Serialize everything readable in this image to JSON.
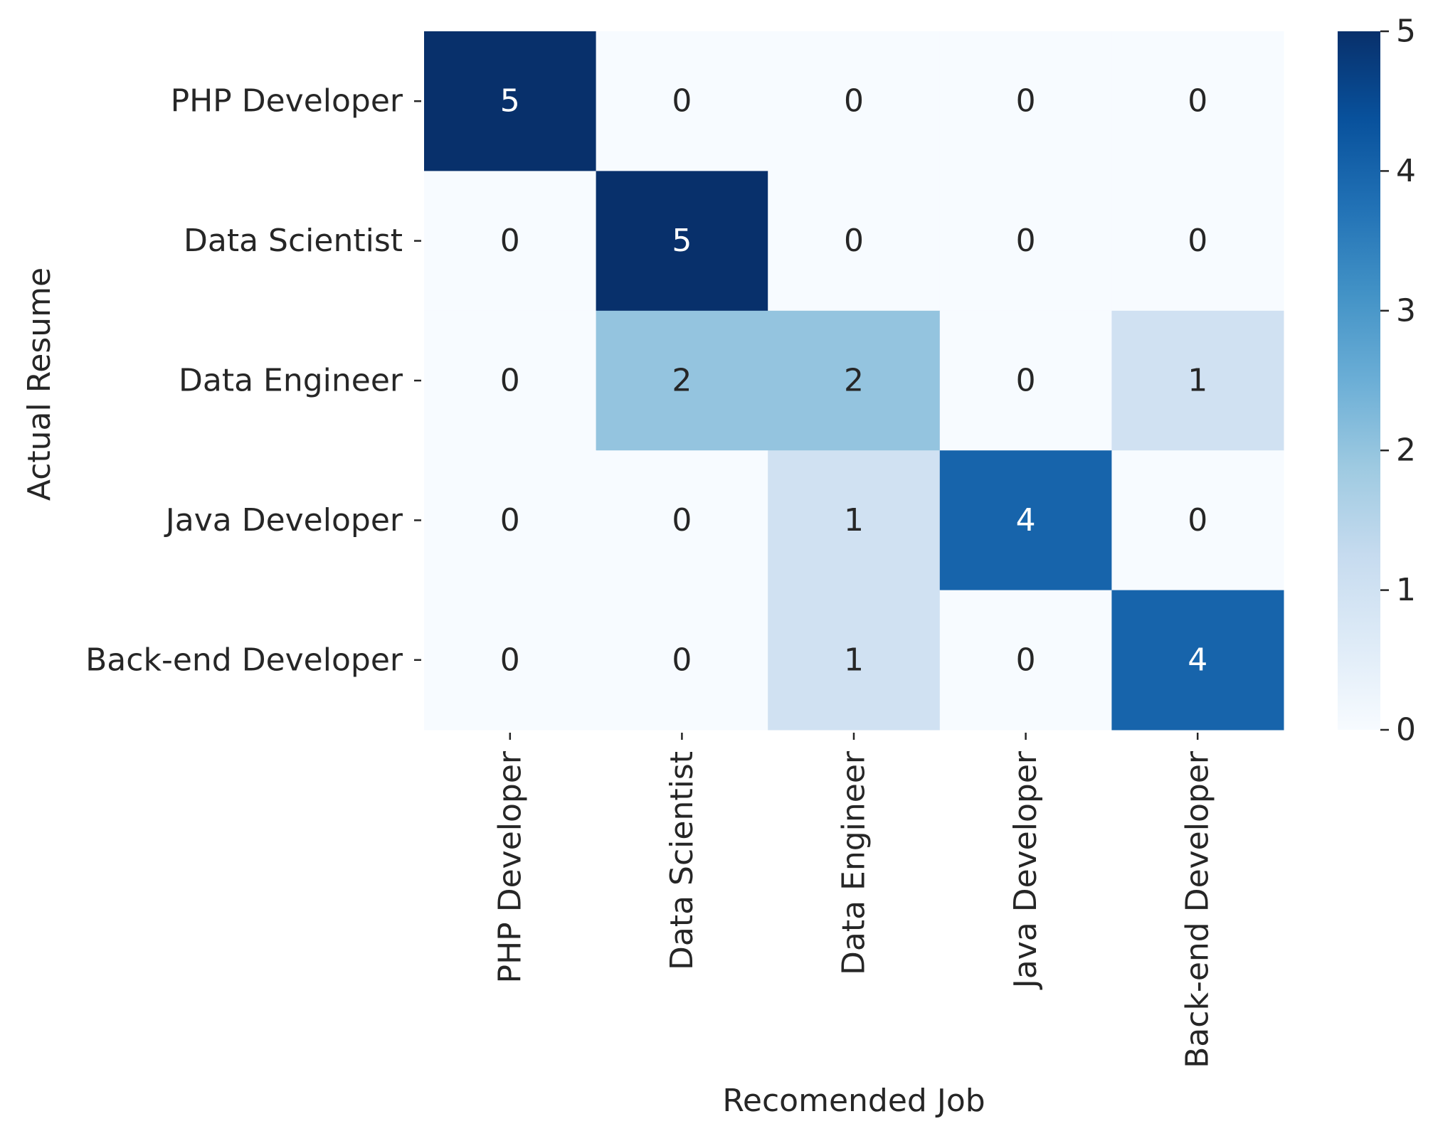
{
  "chart_data": {
    "type": "heatmap",
    "title": "",
    "xlabel": "Recomended Job",
    "ylabel": "Actual Resume",
    "x_categories": [
      "PHP Developer",
      "Data Scientist",
      "Data Engineer",
      "Java Developer",
      "Back-end Developer"
    ],
    "y_categories": [
      "PHP Developer",
      "Data Scientist",
      "Data Engineer",
      "Java Developer",
      "Back-end Developer"
    ],
    "values": [
      [
        5,
        0,
        0,
        0,
        0
      ],
      [
        0,
        5,
        0,
        0,
        0
      ],
      [
        0,
        2,
        2,
        0,
        1
      ],
      [
        0,
        0,
        1,
        4,
        0
      ],
      [
        0,
        0,
        1,
        0,
        4
      ]
    ],
    "colorbar": {
      "range": [
        0,
        5
      ],
      "ticks": [
        "0",
        "1",
        "2",
        "3",
        "4",
        "5"
      ],
      "colormap": "Blues"
    },
    "colors": {
      "low": "#f7fbff",
      "high": "#08306b",
      "text_dark": "#262626",
      "text_light": "#ffffff"
    }
  }
}
